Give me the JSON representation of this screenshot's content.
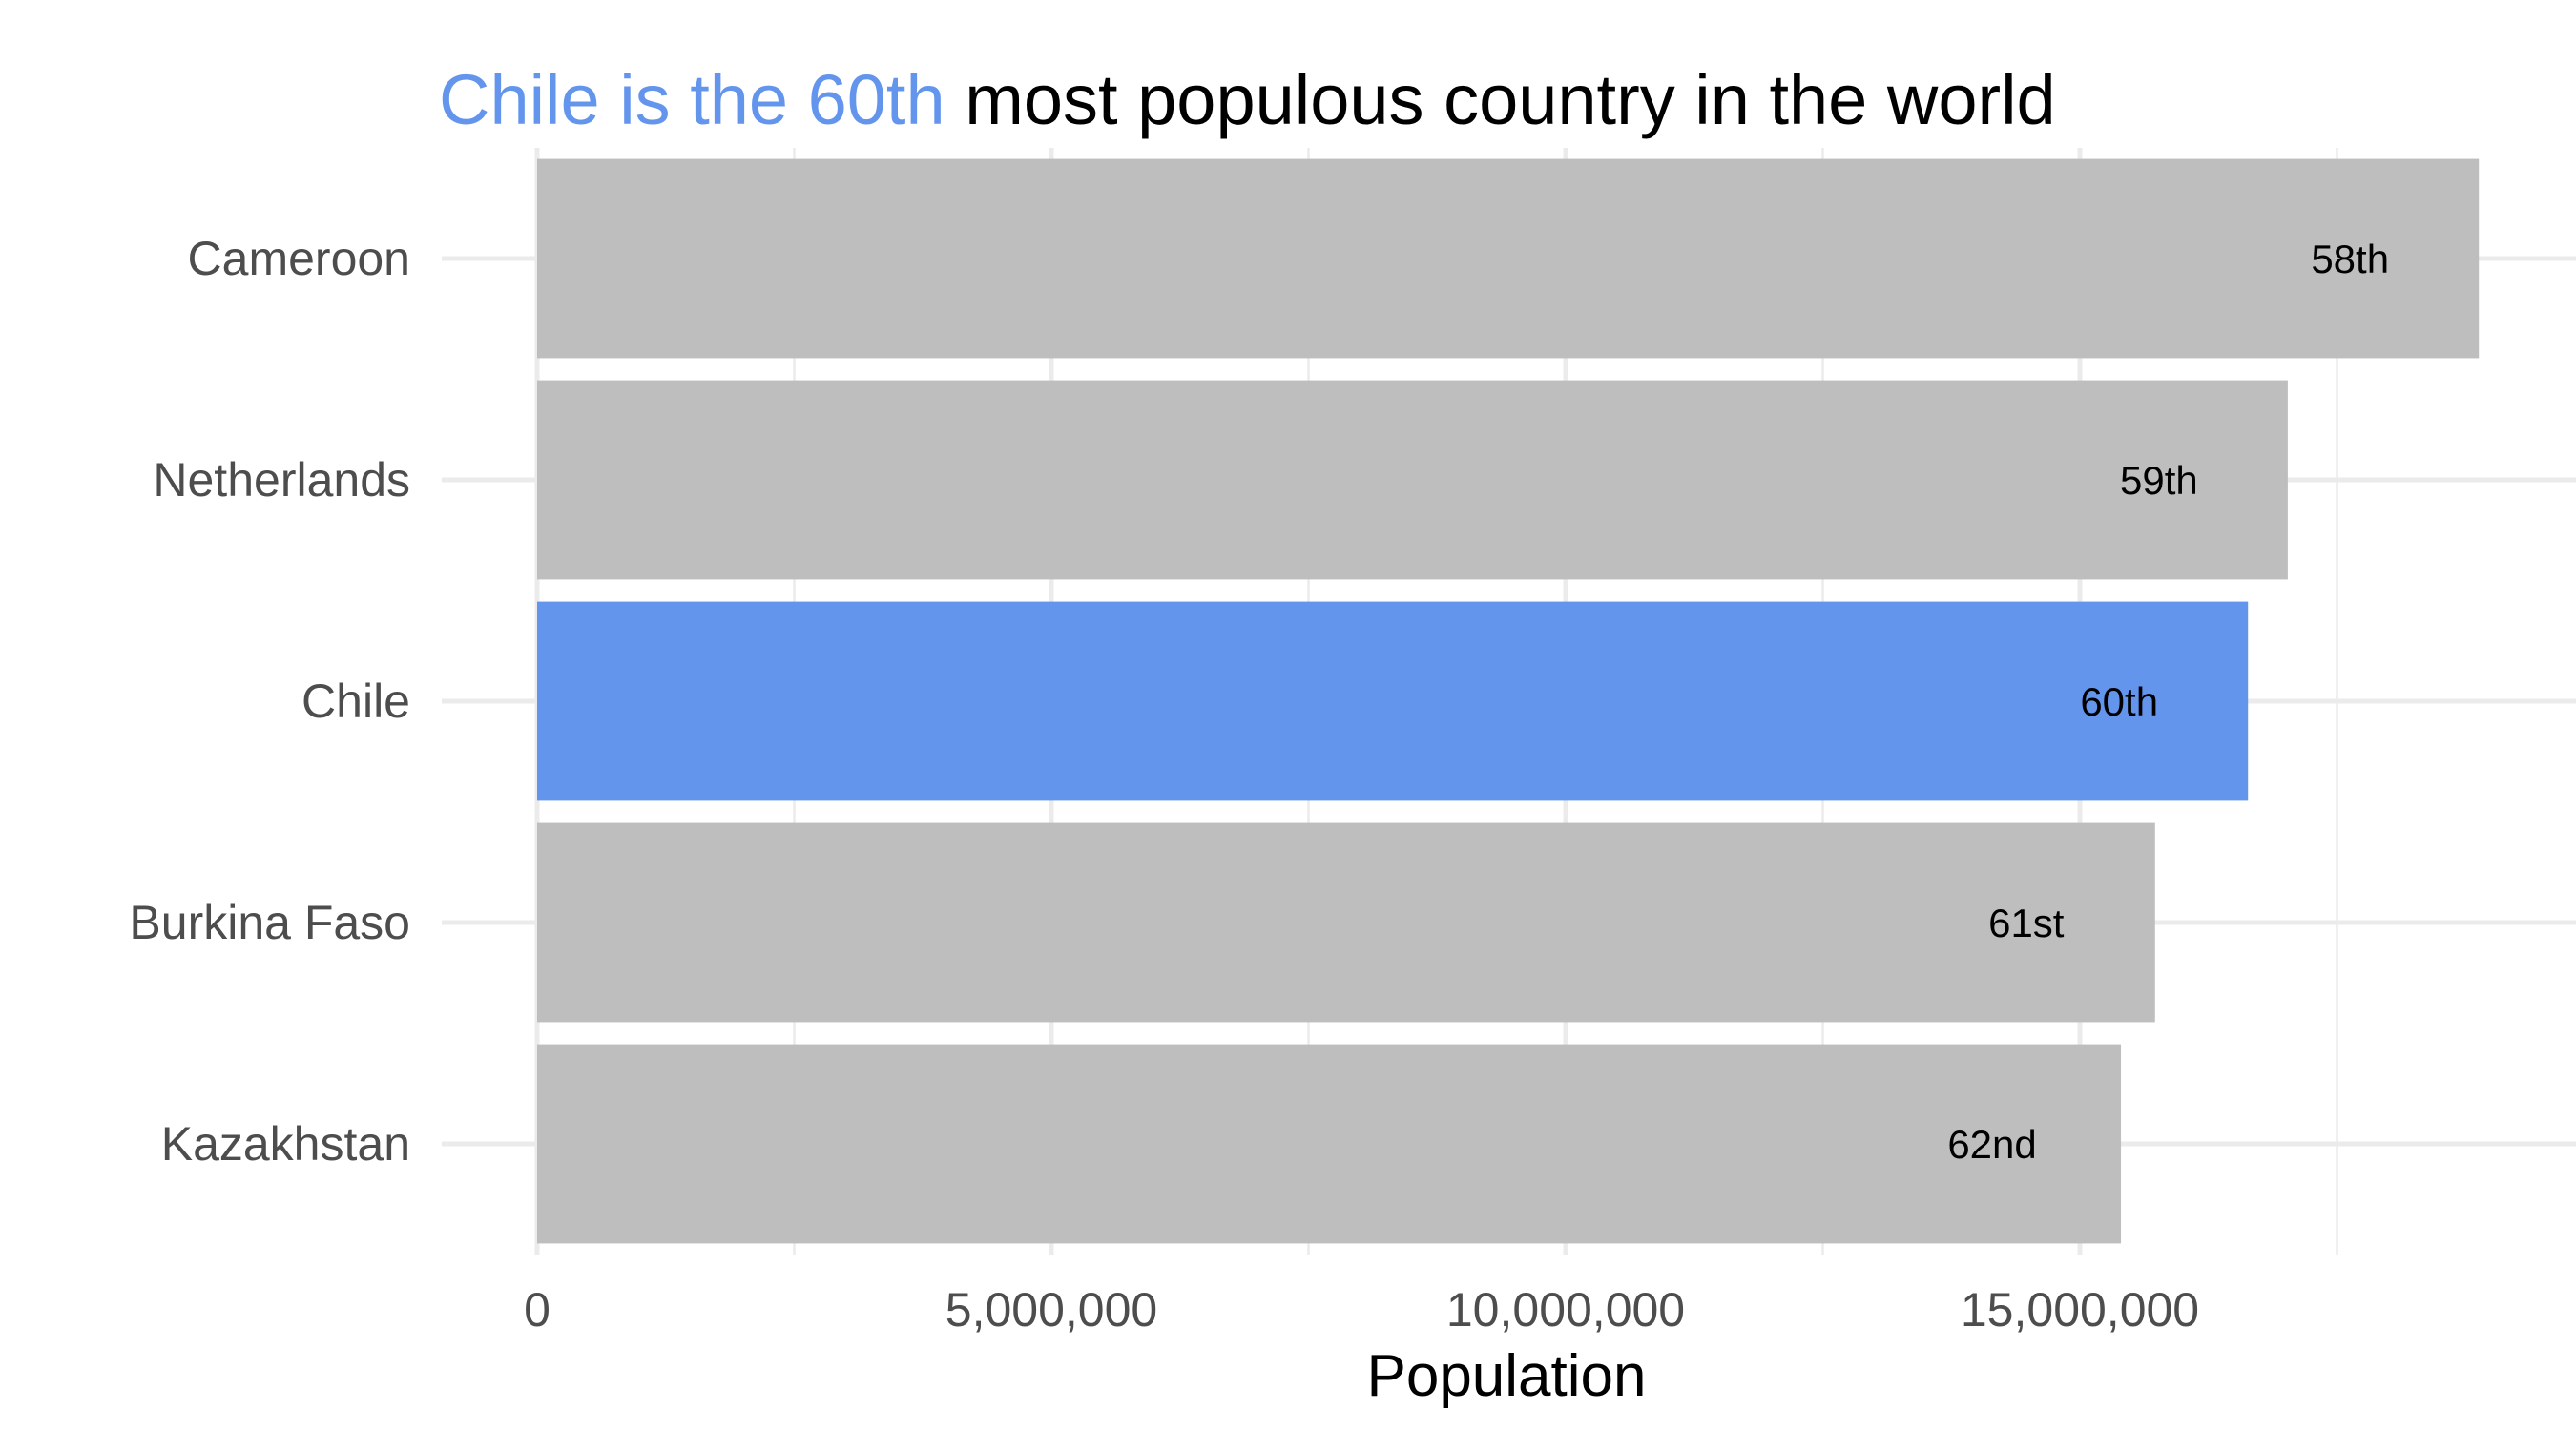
{
  "chart_data": {
    "type": "bar",
    "orientation": "horizontal",
    "title": {
      "highlight": "Chile is the 60th",
      "rest": " most populous country in the world"
    },
    "xlabel": "Population",
    "ylabel": "",
    "categories": [
      "Cameroon",
      "Netherlands",
      "Chile",
      "Burkina Faso",
      "Kazakhstan"
    ],
    "values": [
      18879301,
      17021347,
      16634603,
      15730977,
      15399437
    ],
    "bar_labels": [
      "58th",
      "59th",
      "60th",
      "61st",
      "62nd"
    ],
    "highlight_category": "Chile",
    "xlim": [
      0,
      19700000
    ],
    "xticks": [
      0,
      5000000,
      10000000,
      15000000
    ],
    "xtick_labels": [
      "0",
      "5,000,000",
      "10,000,000",
      "15,000,000"
    ],
    "grid": true,
    "colors": {
      "highlight": "#6495ED",
      "default": "#BEBEBE"
    }
  }
}
